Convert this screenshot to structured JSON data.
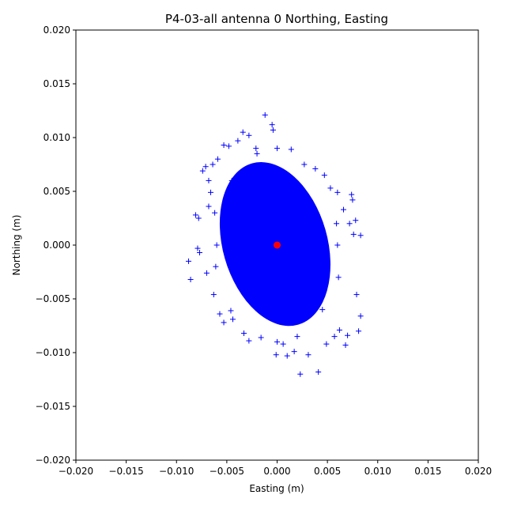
{
  "chart_data": {
    "type": "scatter",
    "title": "P4-03-all antenna 0 Northing, Easting",
    "xlabel": "Easting (m)",
    "ylabel": "Northing (m)",
    "xlim": [
      -0.02,
      0.02
    ],
    "ylim": [
      -0.02,
      0.02
    ],
    "xticks": [
      "−0.020",
      "−0.015",
      "−0.010",
      "−0.005",
      "0.000",
      "0.005",
      "0.010",
      "0.015",
      "0.020"
    ],
    "yticks": [
      "−0.020",
      "−0.015",
      "−0.010",
      "−0.005",
      "0.000",
      "0.005",
      "0.010",
      "0.015",
      "0.020"
    ],
    "grid": false,
    "series": [
      {
        "marker": "+",
        "color": "#0000ff",
        "points": [
          [
            -0.0088,
            -0.0015
          ],
          [
            -0.0086,
            -0.0032
          ],
          [
            -0.0081,
            0.0028
          ],
          [
            -0.0079,
            -0.0003
          ],
          [
            -0.0078,
            0.0025
          ],
          [
            -0.0077,
            -0.0007
          ],
          [
            -0.0074,
            0.0069
          ],
          [
            -0.0071,
            0.0073
          ],
          [
            -0.007,
            -0.0026
          ],
          [
            -0.0068,
            0.0036
          ],
          [
            -0.0068,
            0.006
          ],
          [
            -0.0066,
            0.0049
          ],
          [
            -0.0064,
            0.0075
          ],
          [
            -0.0063,
            -0.0046
          ],
          [
            -0.0059,
            0.008
          ],
          [
            -0.0057,
            -0.0064
          ],
          [
            -0.0053,
            0.0093
          ],
          [
            -0.0053,
            -0.0072
          ],
          [
            -0.0048,
            0.0092
          ],
          [
            -0.0046,
            -0.0061
          ],
          [
            -0.0044,
            -0.0069
          ],
          [
            -0.0039,
            0.0097
          ],
          [
            -0.0034,
            0.0105
          ],
          [
            -0.0033,
            -0.0082
          ],
          [
            -0.0028,
            0.0102
          ],
          [
            -0.0028,
            -0.0089
          ],
          [
            -0.0021,
            0.009
          ],
          [
            -0.0016,
            -0.0086
          ],
          [
            -0.0012,
            0.0121
          ],
          [
            -0.0005,
            0.0112
          ],
          [
            -0.0004,
            0.0107
          ],
          [
            -0.0001,
            -0.0102
          ],
          [
            0.0006,
            -0.0092
          ],
          [
            0.001,
            -0.0103
          ],
          [
            0.0014,
            0.0089
          ],
          [
            0.0017,
            -0.0099
          ],
          [
            0.0023,
            -0.012
          ],
          [
            0.0027,
            0.0075
          ],
          [
            0.0031,
            -0.0102
          ],
          [
            0.0038,
            0.0071
          ],
          [
            0.0041,
            -0.0118
          ],
          [
            0.0047,
            0.0065
          ],
          [
            0.0049,
            -0.0092
          ],
          [
            0.0053,
            0.0053
          ],
          [
            0.0057,
            -0.0085
          ],
          [
            0.006,
            0.0049
          ],
          [
            0.0062,
            -0.0079
          ],
          [
            0.0066,
            0.0033
          ],
          [
            0.0068,
            -0.0093
          ],
          [
            0.007,
            -0.0084
          ],
          [
            0.0072,
            0.002
          ],
          [
            0.0074,
            0.0047
          ],
          [
            0.0075,
            0.0042
          ],
          [
            0.0076,
            0.001
          ],
          [
            0.0078,
            0.0023
          ],
          [
            0.0079,
            -0.0046
          ],
          [
            0.0081,
            -0.008
          ],
          [
            0.0083,
            0.0009
          ],
          [
            0.0083,
            -0.0066
          ],
          [
            -0.006,
            0.0
          ],
          [
            -0.0062,
            0.003
          ],
          [
            -0.0061,
            -0.002
          ],
          [
            0.006,
            0.0
          ],
          [
            0.0061,
            -0.003
          ],
          [
            0.0059,
            0.002
          ],
          [
            -0.002,
            0.0085
          ],
          [
            0.002,
            -0.0085
          ],
          [
            -0.0045,
            0.006
          ],
          [
            0.0045,
            -0.006
          ],
          [
            0.0,
            0.009
          ],
          [
            0.0,
            -0.009
          ]
        ]
      },
      {
        "marker": "o",
        "color": "#ff0000",
        "points": [
          [
            0.0,
            0.0
          ]
        ]
      }
    ]
  }
}
